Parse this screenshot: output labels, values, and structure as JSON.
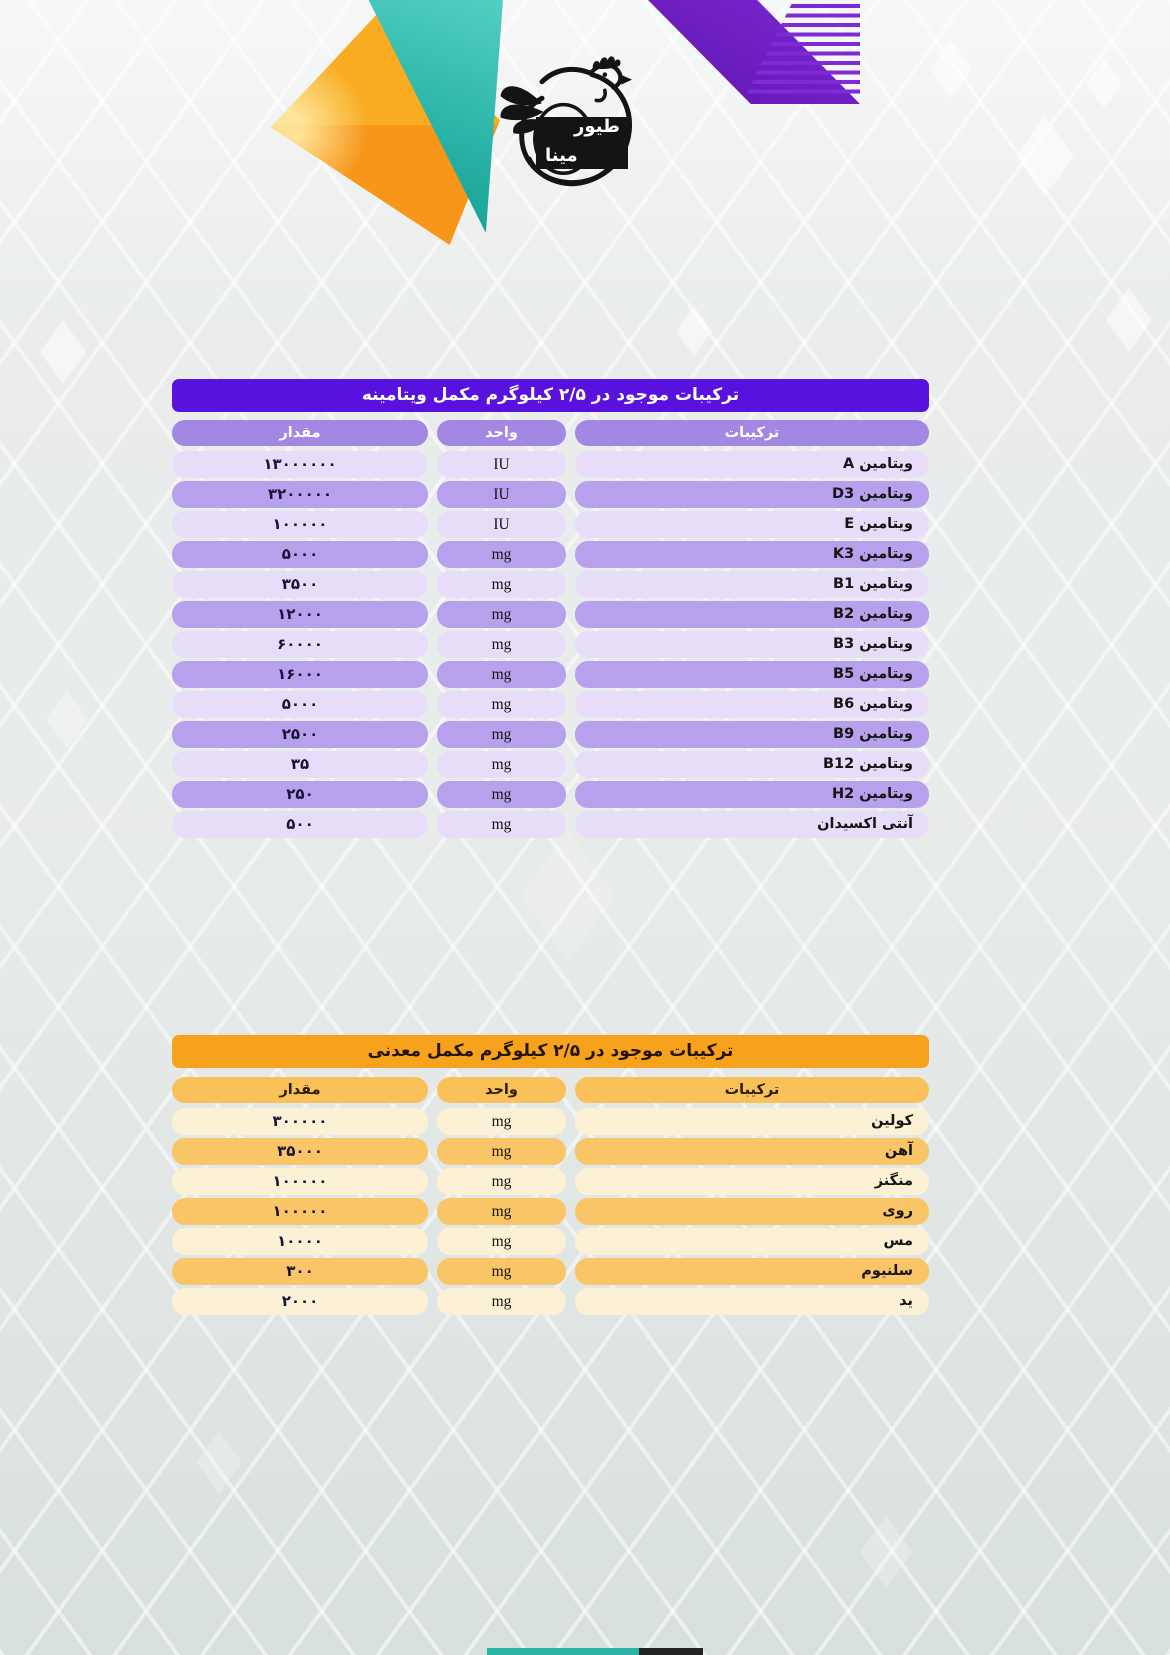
{
  "logo": {
    "line1": "طیور",
    "line2": "مینا"
  },
  "vitamin_table": {
    "title": "ترکیبات موجود در ۲/۵ کیلوگرم مکمل ویتامینه",
    "columns": {
      "amount": "مقدار",
      "unit": "واحد",
      "ingredient": "ترکیبات"
    },
    "rows": [
      {
        "ingredient": "ویتامین A",
        "unit": "IU",
        "amount": "۱۳۰۰۰۰۰۰"
      },
      {
        "ingredient": "ویتامین D3",
        "unit": "IU",
        "amount": "۳۲۰۰۰۰۰"
      },
      {
        "ingredient": "ویتامین E",
        "unit": "IU",
        "amount": "۱۰۰۰۰۰"
      },
      {
        "ingredient": "ویتامین K3",
        "unit": "mg",
        "amount": "۵۰۰۰"
      },
      {
        "ingredient": "ویتامین B1",
        "unit": "mg",
        "amount": "۳۵۰۰"
      },
      {
        "ingredient": "ویتامین B2",
        "unit": "mg",
        "amount": "۱۲۰۰۰"
      },
      {
        "ingredient": "ویتامین B3",
        "unit": "mg",
        "amount": "۶۰۰۰۰"
      },
      {
        "ingredient": "ویتامین B5",
        "unit": "mg",
        "amount": "۱۶۰۰۰"
      },
      {
        "ingredient": "ویتامین B6",
        "unit": "mg",
        "amount": "۵۰۰۰"
      },
      {
        "ingredient": "ویتامین B9",
        "unit": "mg",
        "amount": "۲۵۰۰"
      },
      {
        "ingredient": "ویتامین B12",
        "unit": "mg",
        "amount": "۳۵"
      },
      {
        "ingredient": "ویتامین H2",
        "unit": "mg",
        "amount": "۲۵۰"
      },
      {
        "ingredient": "آنتی اکسیدان",
        "unit": "mg",
        "amount": "۵۰۰"
      }
    ]
  },
  "mineral_table": {
    "title": "ترکیبات موجود در ۲/۵ کیلوگرم مکمل معدنی",
    "columns": {
      "amount": "مقدار",
      "unit": "واحد",
      "ingredient": "ترکیبات"
    },
    "rows": [
      {
        "ingredient": "کولین",
        "unit": "mg",
        "amount": "۳۰۰۰۰۰"
      },
      {
        "ingredient": "آهن",
        "unit": "mg",
        "amount": "۳۵۰۰۰"
      },
      {
        "ingredient": "منگنز",
        "unit": "mg",
        "amount": "۱۰۰۰۰۰"
      },
      {
        "ingredient": "روی",
        "unit": "mg",
        "amount": "۱۰۰۰۰۰"
      },
      {
        "ingredient": "مس",
        "unit": "mg",
        "amount": "۱۰۰۰۰"
      },
      {
        "ingredient": "سلنیوم",
        "unit": "mg",
        "amount": "۳۰۰"
      },
      {
        "ingredient": "ید",
        "unit": "mg",
        "amount": "۲۰۰۰"
      }
    ]
  },
  "colors": {
    "vitamin_accent": "#5912dd",
    "vitamin_row_dark": "#b7a1ec",
    "vitamin_row_light": "#e7ddf8",
    "mineral_accent": "#f7a21c",
    "mineral_row_dark": "#fac566",
    "mineral_row_light": "#fdf1d5",
    "teal_shape": "#28b3a6",
    "orange_shape": "#f79619",
    "purple_shape": "#6b1fc1"
  }
}
